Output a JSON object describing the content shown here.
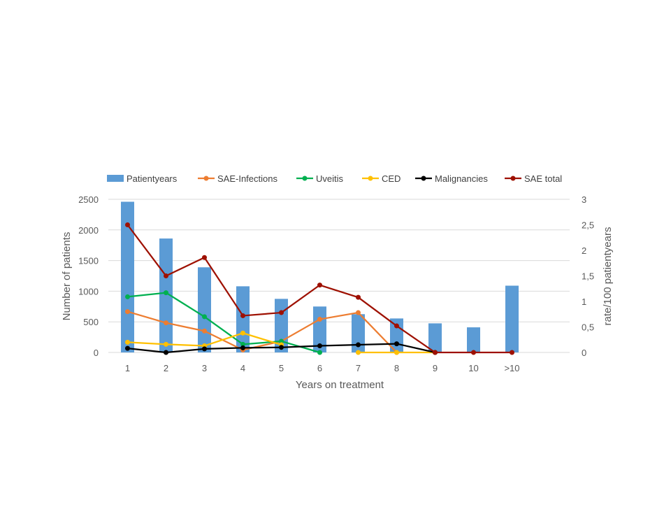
{
  "chart_data": {
    "type": "bar",
    "categories": [
      "1",
      "2",
      "3",
      "4",
      "5",
      "6",
      "7",
      "8",
      "9",
      "10",
      ">10"
    ],
    "xlabel": "Years on treatment",
    "ylabel": "Number of patients",
    "y2label": "rate/100 patientyears",
    "ylim": [
      0,
      2500
    ],
    "y2lim": [
      0,
      3
    ],
    "yticks": [
      "0",
      "500",
      "1000",
      "1500",
      "2000",
      "2500"
    ],
    "y2ticks": [
      "0",
      "0,5",
      "1",
      "1,5",
      "2",
      "2,5",
      "3"
    ],
    "grid": true,
    "legend": "top",
    "bars": {
      "name": "Patientyears",
      "color": "#5B9BD5",
      "values": [
        2460,
        1860,
        1390,
        1080,
        875,
        750,
        625,
        555,
        475,
        410,
        1090
      ]
    },
    "series": [
      {
        "name": "SAE-Infections",
        "color": "#ED7D31",
        "axis": "right",
        "values": [
          0.8,
          0.58,
          0.42,
          0.05,
          0.22,
          0.65,
          0.78,
          0.0,
          null,
          null,
          null
        ]
      },
      {
        "name": "Uveitis",
        "color": "#00B050",
        "axis": "right",
        "values": [
          1.09,
          1.17,
          0.7,
          0.16,
          0.22,
          0.0,
          null,
          null,
          null,
          null,
          null
        ]
      },
      {
        "name": "CED",
        "color": "#FFC000",
        "axis": "right",
        "values": [
          0.2,
          0.16,
          0.13,
          0.38,
          0.15,
          null,
          0.0,
          0.0,
          0.0,
          null,
          null
        ]
      },
      {
        "name": "Malignancies",
        "color": "#000000",
        "axis": "right",
        "values": [
          0.08,
          0.0,
          0.07,
          0.09,
          0.1,
          0.13,
          0.15,
          0.17,
          0.0,
          null,
          null
        ]
      },
      {
        "name": "SAE total",
        "color": "#9E1000",
        "axis": "right",
        "values": [
          2.5,
          1.5,
          1.86,
          0.72,
          0.78,
          1.32,
          1.08,
          0.52,
          0.0,
          0.0,
          0.0
        ]
      }
    ]
  }
}
